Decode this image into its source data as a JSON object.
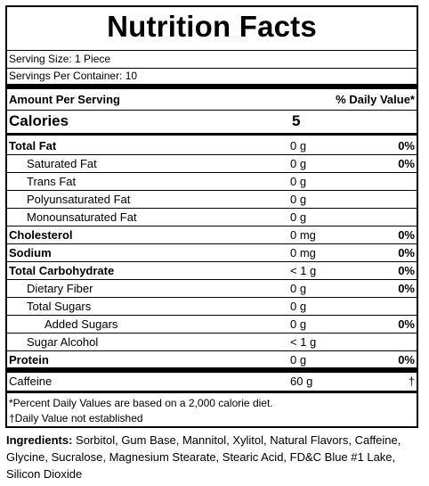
{
  "title": "Nutrition Facts",
  "serving_size": "Serving Size: 1 Piece",
  "servings_per_container": "Servings Per Container: 10",
  "amount_per_serving": "Amount Per Serving",
  "daily_value_header": "% Daily Value*",
  "calories_label": "Calories",
  "calories_value": "5",
  "nutrients": [
    {
      "name": "Total Fat",
      "amount": "0 g",
      "dv": "0%"
    },
    {
      "name": "Saturated Fat",
      "amount": "0 g",
      "dv": "0%"
    },
    {
      "name": "Trans Fat",
      "amount": "0 g",
      "dv": ""
    },
    {
      "name": "Polyunsaturated Fat",
      "amount": "0 g",
      "dv": ""
    },
    {
      "name": "Monounsaturated Fat",
      "amount": "0 g",
      "dv": ""
    },
    {
      "name": "Cholesterol",
      "amount": "0 mg",
      "dv": "0%"
    },
    {
      "name": "Sodium",
      "amount": "0 mg",
      "dv": "0%"
    },
    {
      "name": "Total Carbohydrate",
      "amount": "< 1 g",
      "dv": "0%"
    },
    {
      "name": "Dietary Fiber",
      "amount": "0 g",
      "dv": "0%"
    },
    {
      "name": "Total Sugars",
      "amount": "0 g",
      "dv": ""
    },
    {
      "name": "Added Sugars",
      "amount": "0 g",
      "dv": "0%"
    },
    {
      "name": "Sugar Alcohol",
      "amount": "< 1 g",
      "dv": ""
    },
    {
      "name": "Protein",
      "amount": "0 g",
      "dv": "0%"
    },
    {
      "name": "Caffeine",
      "amount": "60 g",
      "dv": "†"
    }
  ],
  "footnote_1": "*Percent Daily Values are based on a 2,000 calorie diet.",
  "footnote_2": "†Daily Value not established",
  "ingredients_label": "Ingredients:",
  "ingredients_text": " Sorbitol, Gum Base, Mannitol, Xylitol, Natural Flavors, Caffeine, Glycine, Sucralose, Magnesium Stearate, Stearic Acid, FD&C Blue #1 Lake, Silicon Dioxide"
}
